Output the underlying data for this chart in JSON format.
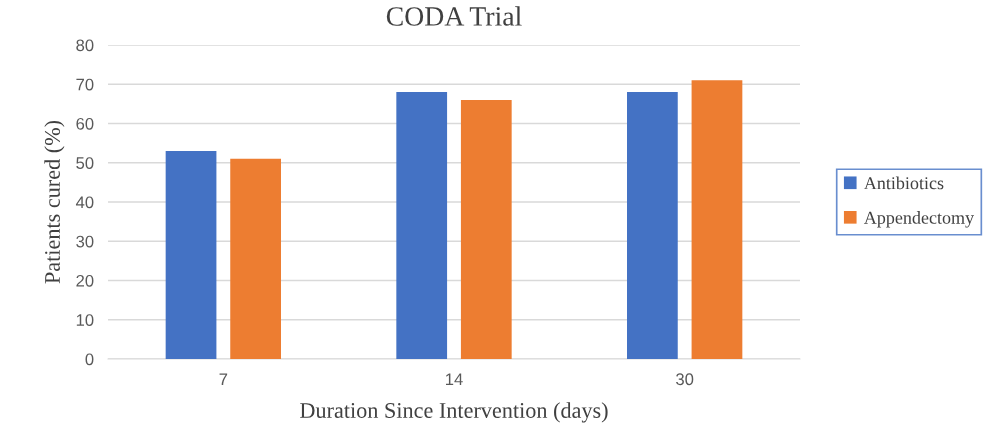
{
  "chart_data": {
    "type": "bar",
    "title": "CODA Trial",
    "xlabel": "Duration Since Intervention (days)",
    "ylabel": "Patients cured (%)",
    "categories": [
      "7",
      "14",
      "30"
    ],
    "series": [
      {
        "name": "Antibiotics",
        "color": "#4472c4",
        "values": [
          53,
          68,
          68
        ]
      },
      {
        "name": "Appendectomy",
        "color": "#ed7d31",
        "values": [
          51,
          66,
          71
        ]
      }
    ],
    "ylim": [
      0,
      80
    ],
    "yticks": [
      0,
      10,
      20,
      30,
      40,
      50,
      60,
      70,
      80
    ],
    "grid": "y",
    "legend": "right"
  }
}
